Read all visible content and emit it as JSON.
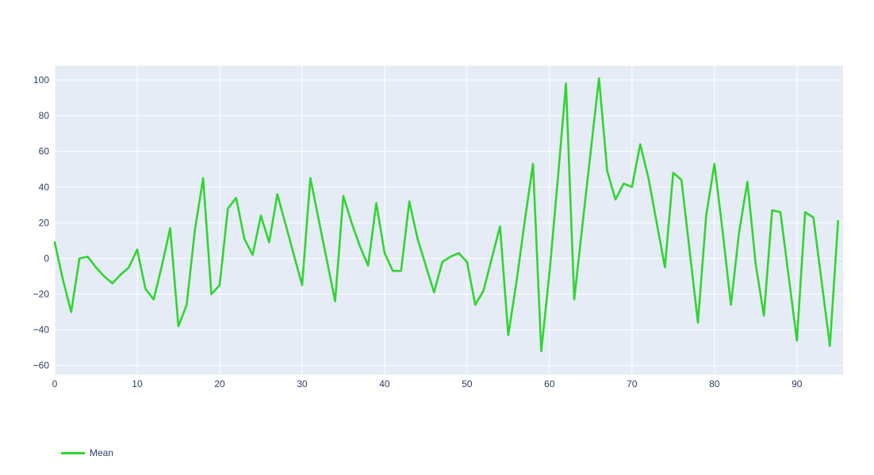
{
  "chart_data": {
    "type": "line",
    "title": "",
    "xlabel": "",
    "ylabel": "",
    "grid": true,
    "legend_position": "bottom-left",
    "plot_bg_color": "#e5ecf6",
    "grid_color": "#ffffff",
    "tick_label_color": "#2a3f5f",
    "x_ticks": [
      0,
      10,
      20,
      30,
      40,
      50,
      60,
      70,
      80,
      90
    ],
    "y_ticks": [
      -60,
      -40,
      -20,
      0,
      20,
      40,
      60,
      80,
      100
    ],
    "x_range": [
      0,
      95.6
    ],
    "y_range": [
      -65,
      108
    ],
    "x": [
      0,
      1,
      2,
      3,
      4,
      5,
      6,
      7,
      8,
      9,
      10,
      11,
      12,
      13,
      14,
      15,
      16,
      17,
      18,
      19,
      20,
      21,
      22,
      23,
      24,
      25,
      26,
      27,
      28,
      29,
      30,
      31,
      32,
      33,
      34,
      35,
      36,
      37,
      38,
      39,
      40,
      41,
      42,
      43,
      44,
      45,
      46,
      47,
      48,
      49,
      50,
      51,
      52,
      53,
      54,
      55,
      56,
      57,
      58,
      59,
      60,
      61,
      62,
      63,
      64,
      65,
      66,
      67,
      68,
      69,
      70,
      71,
      72,
      73,
      74,
      75,
      76,
      77,
      78,
      79,
      80,
      81,
      82,
      83,
      84,
      85,
      86,
      87,
      88,
      89,
      90,
      91,
      92,
      93,
      94,
      95
    ],
    "series": [
      {
        "name": "Mean",
        "color": "#30d530",
        "values": [
          9,
          -12,
          -30,
          0,
          1,
          -5,
          -10,
          -14,
          -9,
          -5,
          5,
          -17,
          -23,
          -4,
          17,
          -38,
          -26,
          16,
          45,
          -20,
          -15,
          28,
          34,
          11,
          2,
          24,
          9,
          36,
          19,
          2,
          -15,
          45,
          22,
          -1,
          -24,
          35,
          20,
          7,
          -4,
          31,
          3,
          -7,
          -7,
          32,
          11,
          -4,
          -19,
          -2,
          1,
          3,
          -2,
          -26,
          -18,
          0,
          18,
          -43,
          -13,
          21,
          53,
          -52,
          -8,
          44,
          98,
          -23,
          19,
          60,
          101,
          49,
          33,
          42,
          40,
          64,
          45,
          20,
          -5,
          48,
          44,
          4,
          -36,
          24,
          53,
          15,
          -26,
          15,
          43,
          -3,
          -32,
          27,
          26,
          -10,
          -46,
          26,
          23,
          -13,
          -49,
          21
        ]
      }
    ]
  },
  "legend": {
    "label": "Mean"
  }
}
